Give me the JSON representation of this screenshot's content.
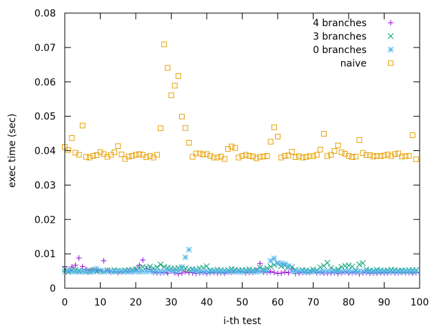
{
  "chart_data": {
    "type": "scatter",
    "title": "",
    "xlabel": "i-th test",
    "ylabel": "exec time (sec)",
    "xlim": [
      0,
      100
    ],
    "ylim": [
      0,
      0.08
    ],
    "xticks": [
      0,
      10,
      20,
      30,
      40,
      50,
      60,
      70,
      80,
      90,
      100
    ],
    "xtick_labels": [
      "0",
      "10",
      "20",
      "30",
      "40",
      "50",
      "60",
      "70",
      "80",
      "90",
      "100"
    ],
    "yticks": [
      0,
      0.01,
      0.02,
      0.03,
      0.04,
      0.05,
      0.06,
      0.07,
      0.08
    ],
    "ytick_labels": [
      "0",
      "0.01",
      "0.02",
      "0.03",
      "0.04",
      "0.05",
      "0.06",
      "0.07",
      "0.08"
    ],
    "grid": false,
    "legend_position": "top-right",
    "series": [
      {
        "name": "4 branches",
        "marker": "plus",
        "color": "#9400d3",
        "x": [
          0,
          1,
          2,
          3,
          4,
          5,
          6,
          7,
          8,
          9,
          10,
          11,
          12,
          13,
          14,
          15,
          16,
          17,
          18,
          19,
          20,
          21,
          22,
          23,
          24,
          25,
          26,
          27,
          28,
          29,
          30,
          31,
          32,
          33,
          34,
          35,
          36,
          37,
          38,
          39,
          40,
          41,
          42,
          43,
          44,
          45,
          46,
          47,
          48,
          49,
          50,
          51,
          52,
          53,
          54,
          55,
          56,
          57,
          58,
          59,
          60,
          61,
          62,
          63,
          64,
          65,
          66,
          67,
          68,
          69,
          70,
          71,
          72,
          73,
          74,
          75,
          76,
          77,
          78,
          79,
          80,
          81,
          82,
          83,
          84,
          85,
          86,
          87,
          88,
          89,
          90,
          91,
          92,
          93,
          94,
          95,
          96,
          97,
          98,
          99
        ],
        "y": [
          0.0063,
          0.0052,
          0.0062,
          0.0067,
          0.0088,
          0.0063,
          0.0054,
          0.0051,
          0.0054,
          0.0053,
          0.0051,
          0.008,
          0.0052,
          0.0047,
          0.0049,
          0.0046,
          0.0047,
          0.0048,
          0.005,
          0.0048,
          0.0055,
          0.0067,
          0.0082,
          0.0056,
          0.0055,
          0.0046,
          0.0045,
          0.0045,
          0.0046,
          0.0044,
          0.005,
          0.0045,
          0.0042,
          0.0044,
          0.0048,
          0.0045,
          0.0045,
          0.0043,
          0.0045,
          0.0046,
          0.0043,
          0.0045,
          0.0046,
          0.0044,
          0.0045,
          0.0044,
          0.0047,
          0.0046,
          0.0048,
          0.0049,
          0.0047,
          0.0045,
          0.0046,
          0.0046,
          0.0052,
          0.0072,
          0.0047,
          0.0046,
          0.0048,
          0.0046,
          0.0043,
          0.0044,
          0.0047,
          0.0045,
          0.0054,
          0.0043,
          0.0044,
          0.0046,
          0.0046,
          0.0045,
          0.0049,
          0.0045,
          0.0046,
          0.0044,
          0.0044,
          0.0045,
          0.0045,
          0.0043,
          0.0045,
          0.0047,
          0.0044,
          0.0045,
          0.0046,
          0.0042,
          0.0045,
          0.0046,
          0.0044,
          0.0044,
          0.0044,
          0.0045,
          0.0044,
          0.0045,
          0.0046,
          0.0045,
          0.0045,
          0.0046,
          0.0045,
          0.0045,
          0.0044,
          0.0045
        ]
      },
      {
        "name": "3 branches",
        "marker": "cross",
        "color": "#009e73",
        "x": [
          0,
          1,
          2,
          3,
          4,
          5,
          6,
          7,
          8,
          9,
          10,
          11,
          12,
          13,
          14,
          15,
          16,
          17,
          18,
          19,
          20,
          21,
          22,
          23,
          24,
          25,
          26,
          27,
          28,
          29,
          30,
          31,
          32,
          33,
          34,
          35,
          36,
          37,
          38,
          39,
          40,
          41,
          42,
          43,
          44,
          45,
          46,
          47,
          48,
          49,
          50,
          51,
          52,
          53,
          54,
          55,
          56,
          57,
          58,
          59,
          60,
          61,
          62,
          63,
          64,
          65,
          66,
          67,
          68,
          69,
          70,
          71,
          72,
          73,
          74,
          75,
          76,
          77,
          78,
          79,
          80,
          81,
          82,
          83,
          84,
          85,
          86,
          87,
          88,
          89,
          90,
          91,
          92,
          93,
          94,
          95,
          96,
          97,
          98,
          99
        ],
        "y": [
          0.0055,
          0.0048,
          0.0052,
          0.0053,
          0.0051,
          0.005,
          0.0049,
          0.0051,
          0.0053,
          0.0049,
          0.0051,
          0.0048,
          0.0052,
          0.005,
          0.0053,
          0.0051,
          0.005,
          0.0052,
          0.0053,
          0.0054,
          0.0055,
          0.0058,
          0.0062,
          0.006,
          0.0063,
          0.0058,
          0.0061,
          0.0069,
          0.0062,
          0.006,
          0.0058,
          0.0057,
          0.0059,
          0.0057,
          0.0058,
          0.0055,
          0.0055,
          0.0055,
          0.0058,
          0.0059,
          0.0064,
          0.0052,
          0.0051,
          0.0054,
          0.0053,
          0.0051,
          0.0053,
          0.0056,
          0.0054,
          0.0052,
          0.0053,
          0.0053,
          0.0055,
          0.0052,
          0.0053,
          0.006,
          0.0055,
          0.0058,
          0.0063,
          0.0068,
          0.0073,
          0.0064,
          0.0066,
          0.006,
          0.0062,
          0.0054,
          0.005,
          0.0053,
          0.0052,
          0.005,
          0.0055,
          0.0052,
          0.0061,
          0.0065,
          0.0074,
          0.0059,
          0.0053,
          0.0055,
          0.0062,
          0.0065,
          0.0066,
          0.0063,
          0.0053,
          0.0069,
          0.0073,
          0.0055,
          0.0052,
          0.005,
          0.0054,
          0.0052,
          0.005,
          0.0052,
          0.0054,
          0.0053,
          0.0051,
          0.0052,
          0.0051,
          0.0053,
          0.0052,
          0.0053
        ]
      },
      {
        "name": "0 branches",
        "marker": "star",
        "color": "#56b4e9",
        "x": [
          0,
          1,
          2,
          3,
          4,
          5,
          6,
          7,
          8,
          9,
          10,
          11,
          12,
          13,
          14,
          15,
          16,
          17,
          18,
          19,
          20,
          21,
          22,
          23,
          24,
          25,
          26,
          27,
          28,
          29,
          30,
          31,
          32,
          33,
          34,
          35,
          36,
          37,
          38,
          39,
          40,
          41,
          42,
          43,
          44,
          45,
          46,
          47,
          48,
          49,
          50,
          51,
          52,
          53,
          54,
          55,
          56,
          57,
          58,
          59,
          60,
          61,
          62,
          63,
          64,
          65,
          66,
          67,
          68,
          69,
          70,
          71,
          72,
          73,
          74,
          75,
          76,
          77,
          78,
          79,
          80,
          81,
          82,
          83,
          84,
          85,
          86,
          87,
          88,
          89,
          90,
          91,
          92,
          93,
          94,
          95,
          96,
          97,
          98,
          99
        ],
        "y": [
          0.0048,
          0.005,
          0.0049,
          0.0049,
          0.0048,
          0.0049,
          0.0048,
          0.0047,
          0.0049,
          0.0057,
          0.0049,
          0.0048,
          0.005,
          0.0049,
          0.0048,
          0.005,
          0.0049,
          0.0049,
          0.0048,
          0.0049,
          0.0049,
          0.0048,
          0.0049,
          0.0049,
          0.005,
          0.0048,
          0.0049,
          0.0048,
          0.0048,
          0.0054,
          0.0049,
          0.005,
          0.0051,
          0.0062,
          0.009,
          0.0112,
          0.0052,
          0.0049,
          0.0049,
          0.0048,
          0.0049,
          0.0049,
          0.005,
          0.0049,
          0.0048,
          0.0049,
          0.0048,
          0.0049,
          0.0049,
          0.0048,
          0.0048,
          0.0049,
          0.0049,
          0.0049,
          0.0048,
          0.0049,
          0.0052,
          0.0049,
          0.008,
          0.0087,
          0.0072,
          0.0072,
          0.0071,
          0.0065,
          0.0049,
          0.0049,
          0.005,
          0.0049,
          0.0048,
          0.0048,
          0.0049,
          0.0049,
          0.0048,
          0.0049,
          0.0049,
          0.0049,
          0.0048,
          0.0049,
          0.0048,
          0.0049,
          0.005,
          0.0048,
          0.0049,
          0.0049,
          0.0049,
          0.0048,
          0.0049,
          0.0048,
          0.0049,
          0.0049,
          0.0048,
          0.0049,
          0.0048,
          0.0049,
          0.0048,
          0.0049,
          0.0049,
          0.0048,
          0.0049,
          0.0048
        ]
      },
      {
        "name": "naive",
        "marker": "square",
        "color": "#e69f00",
        "x": [
          0,
          1,
          2,
          3,
          4,
          5,
          6,
          7,
          8,
          9,
          10,
          11,
          12,
          13,
          14,
          15,
          16,
          17,
          18,
          19,
          20,
          21,
          22,
          23,
          24,
          25,
          26,
          27,
          28,
          29,
          30,
          31,
          32,
          33,
          34,
          35,
          36,
          37,
          38,
          39,
          40,
          41,
          42,
          43,
          44,
          45,
          46,
          47,
          48,
          49,
          50,
          51,
          52,
          53,
          54,
          55,
          56,
          57,
          58,
          59,
          60,
          61,
          62,
          63,
          64,
          65,
          66,
          67,
          68,
          69,
          70,
          71,
          72,
          73,
          74,
          75,
          76,
          77,
          78,
          79,
          80,
          81,
          82,
          83,
          84,
          85,
          86,
          87,
          88,
          89,
          90,
          91,
          92,
          93,
          94,
          95,
          96,
          97,
          98,
          99
        ],
        "y": [
          0.0411,
          0.0402,
          0.0437,
          0.0394,
          0.0388,
          0.0473,
          0.0382,
          0.038,
          0.0385,
          0.0387,
          0.0396,
          0.039,
          0.0382,
          0.0388,
          0.0395,
          0.0413,
          0.0389,
          0.0376,
          0.0383,
          0.0385,
          0.0388,
          0.039,
          0.0388,
          0.0381,
          0.0385,
          0.038,
          0.0388,
          0.0465,
          0.0709,
          0.0641,
          0.0561,
          0.0589,
          0.0617,
          0.0499,
          0.0466,
          0.0423,
          0.0382,
          0.0392,
          0.0392,
          0.0389,
          0.039,
          0.0385,
          0.038,
          0.038,
          0.0383,
          0.0376,
          0.0405,
          0.0412,
          0.0408,
          0.038,
          0.0385,
          0.0388,
          0.0385,
          0.0383,
          0.0378,
          0.0382,
          0.0383,
          0.0385,
          0.0426,
          0.0468,
          0.0441,
          0.038,
          0.0385,
          0.0386,
          0.0397,
          0.0381,
          0.0384,
          0.038,
          0.0382,
          0.0384,
          0.0384,
          0.0388,
          0.0403,
          0.0449,
          0.0384,
          0.0388,
          0.0399,
          0.0415,
          0.0395,
          0.0391,
          0.0385,
          0.0381,
          0.0383,
          0.0431,
          0.0393,
          0.0387,
          0.0387,
          0.0383,
          0.0385,
          0.0384,
          0.0386,
          0.0389,
          0.0384,
          0.039,
          0.0392,
          0.0383,
          0.0384,
          0.0385,
          0.0445,
          0.0375
        ]
      }
    ]
  }
}
